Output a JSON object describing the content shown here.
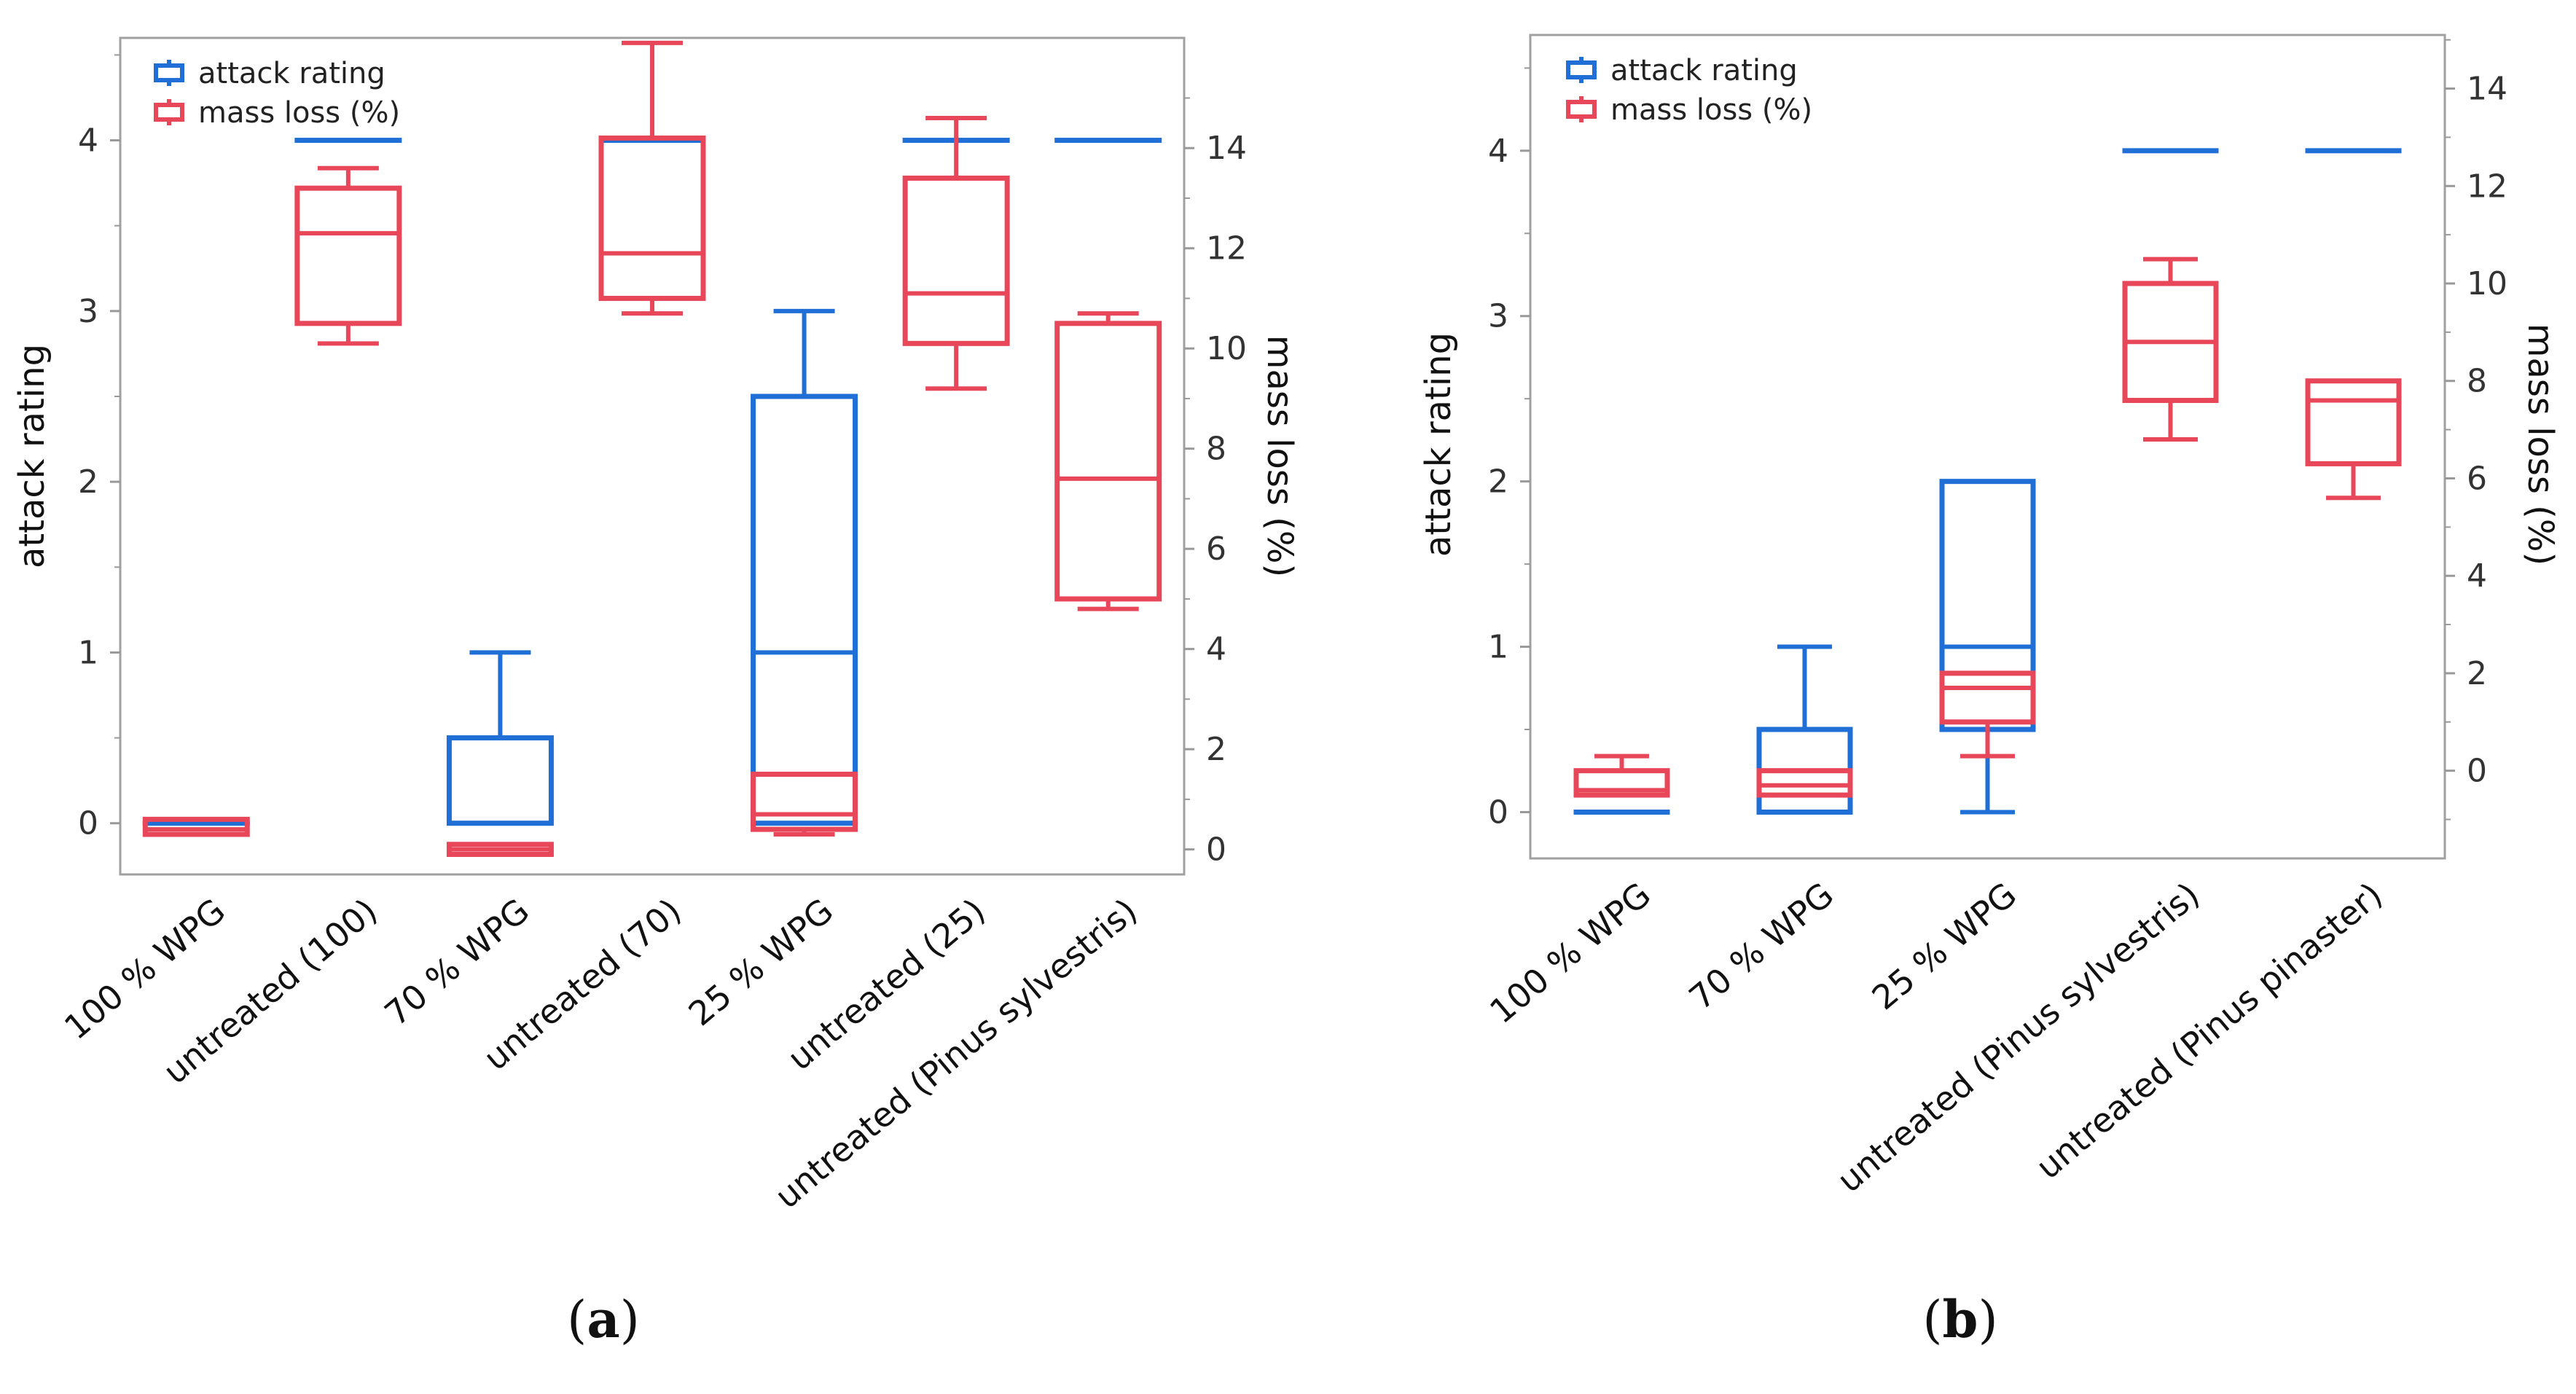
{
  "colors": {
    "attack": "#1f6fd6",
    "mass": "#e8475a",
    "frame": "#a0a0a0",
    "tick": "#999999"
  },
  "chart_data": [
    {
      "type": "box",
      "panel": "a",
      "panel_label": "a",
      "ylabel": "attack rating",
      "y2label": "mass loss (%)",
      "ylim": [
        -0.3,
        4.6
      ],
      "yticks": [
        0,
        1,
        2,
        3,
        4
      ],
      "y2lim": [
        -0.5,
        16.2
      ],
      "y2ticks": [
        0,
        2,
        4,
        6,
        8,
        10,
        12,
        14
      ],
      "legend": [
        "attack rating",
        "mass loss (%)"
      ],
      "categories": [
        "100 % WPG",
        "untreated (100)",
        "70 % WPG",
        "untreated (70)",
        "25 % WPG",
        "untreated (25)",
        "untreated (Pinus sylvestris)"
      ],
      "series": [
        {
          "name": "attack rating",
          "axis": "left",
          "boxes": [
            {
              "min": 0,
              "q1": 0,
              "median": 0,
              "q3": 0,
              "max": 0
            },
            {
              "min": 4,
              "q1": 4,
              "median": 4,
              "q3": 4,
              "max": 4
            },
            {
              "min": 0,
              "q1": 0,
              "median": 0,
              "q3": 0.5,
              "max": 1
            },
            {
              "min": 4,
              "q1": 4,
              "median": 4,
              "q3": 4,
              "max": 4
            },
            {
              "min": 0,
              "q1": 0,
              "median": 1,
              "q3": 2.5,
              "max": 3
            },
            {
              "min": 4,
              "q1": 4,
              "median": 4,
              "q3": 4,
              "max": 4
            },
            {
              "min": 4,
              "q1": 4,
              "median": 4,
              "q3": 4,
              "max": 4
            }
          ]
        },
        {
          "name": "mass loss (%)",
          "axis": "right",
          "boxes": [
            {
              "min": 0.3,
              "q1": 0.3,
              "median": 0.4,
              "q3": 0.6,
              "max": 0.6
            },
            {
              "min": 10.1,
              "q1": 10.5,
              "median": 12.3,
              "q3": 13.2,
              "max": 13.6
            },
            {
              "min": -0.1,
              "q1": -0.1,
              "median": 0.0,
              "q3": 0.1,
              "max": 0.1
            },
            {
              "min": 10.7,
              "q1": 11.0,
              "median": 11.9,
              "q3": 14.2,
              "max": 16.1
            },
            {
              "min": 0.3,
              "q1": 0.4,
              "median": 0.7,
              "q3": 1.5,
              "max": 1.5
            },
            {
              "min": 9.2,
              "q1": 10.1,
              "median": 11.1,
              "q3": 13.4,
              "max": 14.6
            },
            {
              "min": 4.8,
              "q1": 5.0,
              "median": 7.4,
              "q3": 10.5,
              "max": 10.7
            }
          ]
        }
      ]
    },
    {
      "type": "box",
      "panel": "b",
      "panel_label": "b",
      "ylabel": "attack rating",
      "y2label": "mass loss (%)",
      "ylim": [
        -0.28,
        4.7
      ],
      "yticks": [
        0,
        1,
        2,
        3,
        4
      ],
      "y2lim": [
        -1.8,
        15.1
      ],
      "y2ticks": [
        0,
        2,
        4,
        6,
        8,
        10,
        12,
        14
      ],
      "legend": [
        "attack rating",
        "mass loss (%)"
      ],
      "categories": [
        "100 % WPG",
        "70 % WPG",
        "25 % WPG",
        "untreated (Pinus sylvestris)",
        "untreated (Pinus pinaster)"
      ],
      "series": [
        {
          "name": "attack rating",
          "axis": "left",
          "boxes": [
            {
              "min": 0,
              "q1": 0,
              "median": 0,
              "q3": 0,
              "max": 0
            },
            {
              "min": 0,
              "q1": 0,
              "median": 0,
              "q3": 0.5,
              "max": 1
            },
            {
              "min": 0,
              "q1": 0.5,
              "median": 1,
              "q3": 2,
              "max": 2
            },
            {
              "min": 4,
              "q1": 4,
              "median": 4,
              "q3": 4,
              "max": 4
            },
            {
              "min": 4,
              "q1": 4,
              "median": 4,
              "q3": 4,
              "max": 4
            }
          ]
        },
        {
          "name": "mass loss (%)",
          "axis": "right",
          "boxes": [
            {
              "min": -0.5,
              "q1": -0.5,
              "median": -0.4,
              "q3": 0.0,
              "max": 0.3
            },
            {
              "min": -0.5,
              "q1": -0.5,
              "median": -0.3,
              "q3": 0.0,
              "max": 0.0
            },
            {
              "min": 0.3,
              "q1": 1.0,
              "median": 1.7,
              "q3": 2.0,
              "max": 2.0
            },
            {
              "min": 6.8,
              "q1": 7.6,
              "median": 8.8,
              "q3": 10.0,
              "max": 10.5
            },
            {
              "min": 5.6,
              "q1": 6.3,
              "median": 7.6,
              "q3": 8.0,
              "max": 8.0
            }
          ]
        }
      ]
    }
  ]
}
